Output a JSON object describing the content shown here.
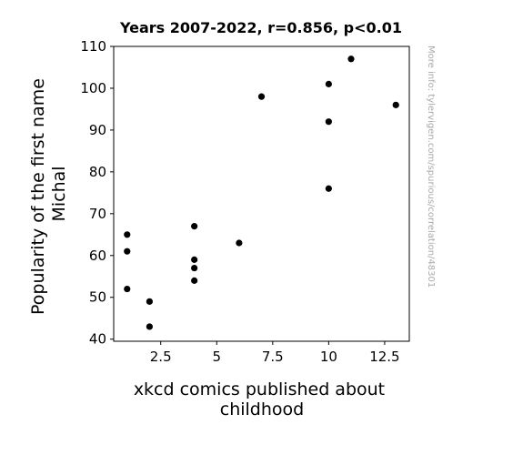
{
  "chart_data": {
    "type": "scatter",
    "title": "Years 2007-2022, r=0.856, p<0.01",
    "xlabel": [
      "xkcd comics published about",
      "childhood"
    ],
    "ylabel": [
      "Popularity of the first name",
      "Michal"
    ],
    "xlim": [
      0.4,
      13.6
    ],
    "ylim": [
      39.5,
      110
    ],
    "xticks": [
      2.5,
      5,
      7.5,
      10,
      12.5
    ],
    "xtick_labels": [
      "2.5",
      "5",
      "7.5",
      "10",
      "12.5"
    ],
    "yticks": [
      40,
      50,
      60,
      70,
      80,
      90,
      100,
      110
    ],
    "ytick_labels": [
      "40",
      "50",
      "60",
      "70",
      "80",
      "90",
      "100",
      "110"
    ],
    "grid": false,
    "legend": "none",
    "marker_color": "#000000",
    "points": [
      {
        "x": 1,
        "y": 65
      },
      {
        "x": 1,
        "y": 61
      },
      {
        "x": 1,
        "y": 52
      },
      {
        "x": 2,
        "y": 49
      },
      {
        "x": 2,
        "y": 43
      },
      {
        "x": 4,
        "y": 67
      },
      {
        "x": 4,
        "y": 59
      },
      {
        "x": 4,
        "y": 57
      },
      {
        "x": 4,
        "y": 54
      },
      {
        "x": 6,
        "y": 63
      },
      {
        "x": 7,
        "y": 98
      },
      {
        "x": 10,
        "y": 101
      },
      {
        "x": 10,
        "y": 92
      },
      {
        "x": 10,
        "y": 76
      },
      {
        "x": 11,
        "y": 107
      },
      {
        "x": 13,
        "y": 96
      }
    ]
  },
  "side_note": "More info: tylervigen.com/spurious/correlation/48301"
}
